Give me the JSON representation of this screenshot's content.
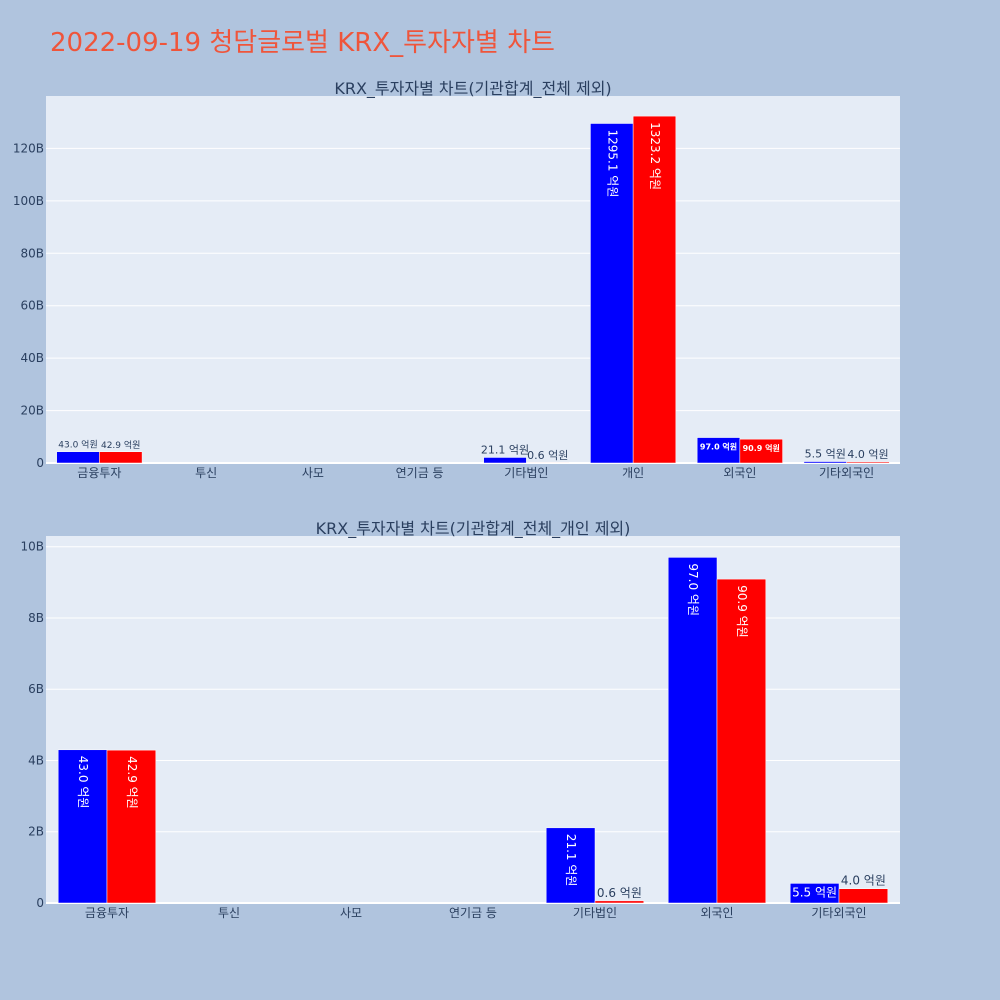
{
  "title": "2022-09-19 청담글로벌 KRX_투자자별 차트",
  "colors": {
    "buy": "#0000ff",
    "sell": "#ff0000",
    "plot_bg": "#e5ecf6",
    "paper_bg": "#b0c4de",
    "title": "#ef553b"
  },
  "chart_data": [
    {
      "type": "bar",
      "title": "KRX_투자자별 차트(기관합계_전체 제외)",
      "categories": [
        "금융투자",
        "투신",
        "사모",
        "연기금 등",
        "기타법인",
        "개인",
        "외국인",
        "기타외국인"
      ],
      "series": [
        {
          "values": [
            4300000000,
            0,
            0,
            0,
            2110000000,
            129510000000,
            9700000000,
            550000000
          ],
          "labels": [
            "43.0 억원",
            "",
            "",
            "",
            "21.1 억원",
            "1295.1 억원",
            "97.0 억원",
            "5.5 억원"
          ]
        },
        {
          "values": [
            4290000000,
            0,
            0,
            0,
            60000000,
            132320000000,
            9090000000,
            400000000
          ],
          "labels": [
            "42.9 억원",
            "",
            "",
            "",
            "0.6 억원",
            "1323.2 억원",
            "90.9 억원",
            "4.0 억원"
          ]
        }
      ],
      "ylim": [
        0,
        140000000000
      ],
      "yticks": [
        0,
        20000000000,
        40000000000,
        60000000000,
        80000000000,
        100000000000,
        120000000000
      ],
      "ytick_labels": [
        "0",
        "20B",
        "40B",
        "60B",
        "80B",
        "100B",
        "120B"
      ]
    },
    {
      "type": "bar",
      "title": "KRX_투자자별 차트(기관합계_전체_개인 제외)",
      "categories": [
        "금융투자",
        "투신",
        "사모",
        "연기금 등",
        "기타법인",
        "외국인",
        "기타외국인"
      ],
      "series": [
        {
          "values": [
            4300000000,
            0,
            0,
            0,
            2110000000,
            9700000000,
            550000000
          ],
          "labels": [
            "43.0 억원",
            "",
            "",
            "",
            "21.1 억원",
            "97.0 억원",
            "5.5 억원"
          ]
        },
        {
          "values": [
            4290000000,
            0,
            0,
            0,
            60000000,
            9090000000,
            400000000
          ],
          "labels": [
            "42.9 억원",
            "",
            "",
            "",
            "0.6 억원",
            "90.9 억원",
            "4.0 억원"
          ]
        }
      ],
      "ylim": [
        0,
        10300000000
      ],
      "yticks": [
        0,
        2000000000,
        4000000000,
        6000000000,
        8000000000,
        10000000000
      ],
      "ytick_labels": [
        "0",
        "2B",
        "4B",
        "6B",
        "8B",
        "10B"
      ]
    }
  ]
}
